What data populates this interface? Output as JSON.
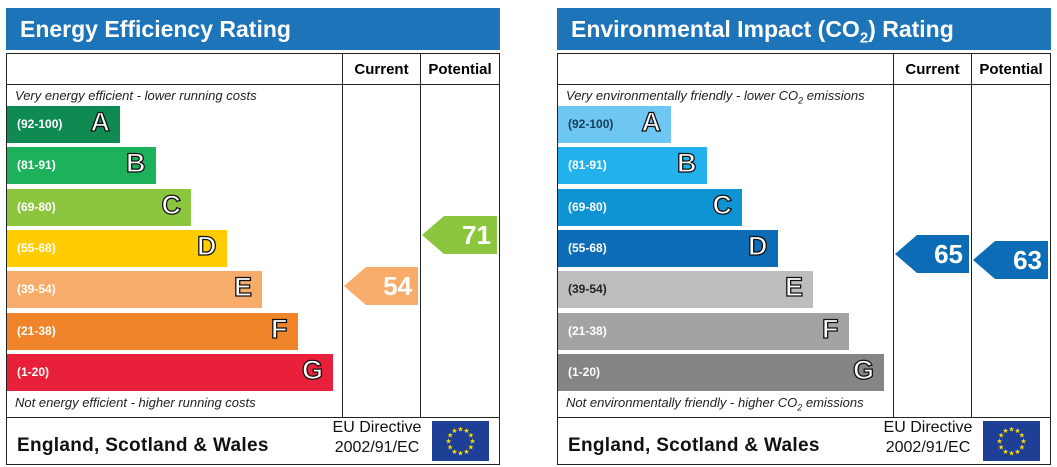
{
  "chart_data": [
    {
      "type": "bar",
      "title": "Energy Efficiency Rating",
      "columns": [
        "Current",
        "Potential"
      ],
      "top_note": "Very energy efficient - lower running costs",
      "bottom_note": "Not energy efficient - higher running costs",
      "bands": [
        {
          "range": "(92-100)",
          "letter": "A",
          "color": "#0f8a52"
        },
        {
          "range": "(81-91)",
          "letter": "B",
          "color": "#1db15b"
        },
        {
          "range": "(69-80)",
          "letter": "C",
          "color": "#8cc63f"
        },
        {
          "range": "(55-68)",
          "letter": "D",
          "color": "#ffcc00"
        },
        {
          "range": "(39-54)",
          "letter": "E",
          "color": "#f7ac6b"
        },
        {
          "range": "(21-38)",
          "letter": "F",
          "color": "#f0842a"
        },
        {
          "range": "(1-20)",
          "letter": "G",
          "color": "#e9203a"
        }
      ],
      "current": {
        "value": 54,
        "color": "#f7ac6b"
      },
      "potential": {
        "value": 71,
        "color": "#8cc63f"
      },
      "footer": {
        "country": "England, Scotland & Wales",
        "directive_line1": "EU Directive",
        "directive_line2": "2002/91/EC"
      }
    },
    {
      "type": "bar",
      "title_pre": "Environmental Impact (CO",
      "title_sub": "2",
      "title_post": ") Rating",
      "columns": [
        "Current",
        "Potential"
      ],
      "top_note_pre": "Very environmentally friendly - lower CO",
      "top_note_sub": "2",
      "top_note_post": " emissions",
      "bottom_note_pre": "Not environmentally friendly - higher CO",
      "bottom_note_sub": "2",
      "bottom_note_post": " emissions",
      "bands": [
        {
          "range": "(92-100)",
          "letter": "A",
          "color": "#6dc7f2"
        },
        {
          "range": "(81-91)",
          "letter": "B",
          "color": "#22b1ea"
        },
        {
          "range": "(69-80)",
          "letter": "C",
          "color": "#0e94d3"
        },
        {
          "range": "(55-68)",
          "letter": "D",
          "color": "#0c6cb5"
        },
        {
          "range": "(39-54)",
          "letter": "E",
          "color": "#bdbdbd"
        },
        {
          "range": "(21-38)",
          "letter": "F",
          "color": "#a3a3a3"
        },
        {
          "range": "(1-20)",
          "letter": "G",
          "color": "#858585"
        }
      ],
      "current": {
        "value": 65,
        "color": "#0c6cb5"
      },
      "potential": {
        "value": 63,
        "color": "#0c6cb5"
      },
      "footer": {
        "country": "England, Scotland & Wales",
        "directive_line1": "EU Directive",
        "directive_line2": "2002/91/EC"
      }
    }
  ]
}
